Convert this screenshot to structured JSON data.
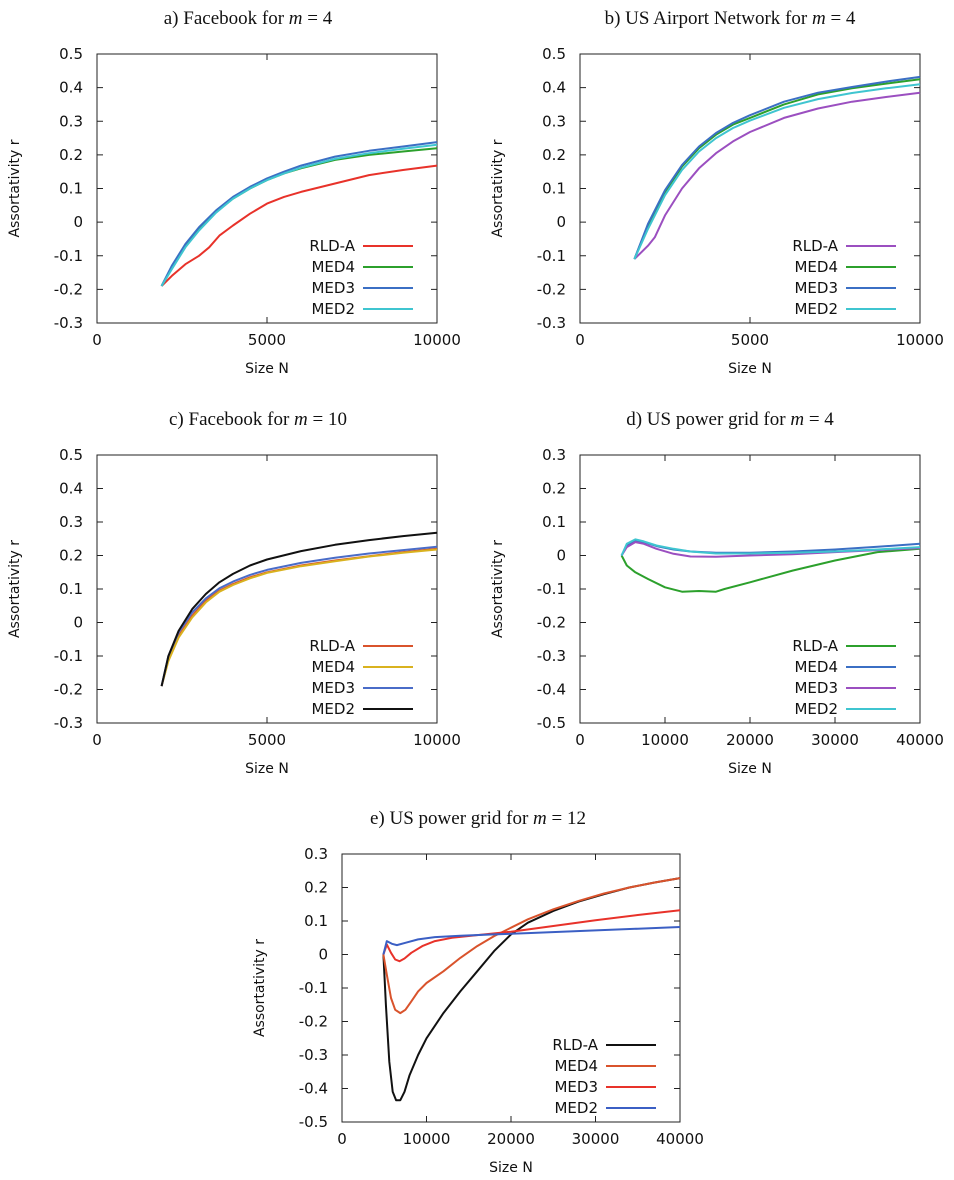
{
  "chart_data": [
    {
      "id": "a",
      "type": "line",
      "title": "a) Facebook for m = 4",
      "title_parts": {
        "prefix": "a) Facebook for ",
        "var": "m",
        "suffix": " = 4"
      },
      "xlabel": "Size N",
      "ylabel": "Assortativity r",
      "xlim": [
        0,
        10000
      ],
      "ylim": [
        -0.3,
        0.5
      ],
      "xticks": [
        0,
        5000,
        10000
      ],
      "yticks": [
        -0.3,
        -0.2,
        -0.1,
        0,
        0.1,
        0.2,
        0.3,
        0.4,
        0.5
      ],
      "grid": false,
      "legend_position": "bottom-right",
      "series": [
        {
          "name": "RLD-A",
          "color": "#e8322a",
          "x": [
            1900,
            2200,
            2600,
            3000,
            3300,
            3600,
            4000,
            4500,
            5000,
            5500,
            6000,
            7000,
            8000,
            9000,
            10000
          ],
          "y": [
            -0.19,
            -0.16,
            -0.125,
            -0.1,
            -0.075,
            -0.04,
            -0.01,
            0.025,
            0.055,
            0.075,
            0.09,
            0.115,
            0.14,
            0.155,
            0.168
          ]
        },
        {
          "name": "MED4",
          "color": "#2ca02c",
          "x": [
            1900,
            2200,
            2600,
            3000,
            3500,
            4000,
            4500,
            5000,
            5500,
            6000,
            7000,
            8000,
            9000,
            10000
          ],
          "y": [
            -0.19,
            -0.135,
            -0.07,
            -0.02,
            0.03,
            0.07,
            0.1,
            0.125,
            0.145,
            0.16,
            0.185,
            0.2,
            0.21,
            0.22
          ]
        },
        {
          "name": "MED3",
          "color": "#3b6fc4",
          "x": [
            1900,
            2200,
            2600,
            3000,
            3500,
            4000,
            4500,
            5000,
            5500,
            6000,
            7000,
            8000,
            9000,
            10000
          ],
          "y": [
            -0.19,
            -0.13,
            -0.065,
            -0.015,
            0.035,
            0.075,
            0.105,
            0.13,
            0.15,
            0.168,
            0.195,
            0.212,
            0.225,
            0.238
          ]
        },
        {
          "name": "MED2",
          "color": "#3fc5d0",
          "x": [
            1900,
            2200,
            2600,
            3000,
            3500,
            4000,
            4500,
            5000,
            5500,
            6000,
            7000,
            8000,
            9000,
            10000
          ],
          "y": [
            -0.19,
            -0.14,
            -0.075,
            -0.025,
            0.028,
            0.07,
            0.1,
            0.125,
            0.145,
            0.162,
            0.188,
            0.205,
            0.218,
            0.23
          ]
        }
      ]
    },
    {
      "id": "b",
      "type": "line",
      "title": "b) US Airport Network for m = 4",
      "title_parts": {
        "prefix": "b) US Airport Network for ",
        "var": "m",
        "suffix": " = 4"
      },
      "xlabel": "Size N",
      "ylabel": "Assortativity r",
      "xlim": [
        0,
        10000
      ],
      "ylim": [
        -0.3,
        0.5
      ],
      "xticks": [
        0,
        5000,
        10000
      ],
      "yticks": [
        -0.3,
        -0.2,
        -0.1,
        0,
        0.1,
        0.2,
        0.3,
        0.4,
        0.5
      ],
      "grid": false,
      "legend_position": "bottom-right",
      "series": [
        {
          "name": "RLD-A",
          "color": "#9b4fc0",
          "x": [
            1600,
            2000,
            2200,
            2500,
            3000,
            3500,
            4000,
            4500,
            5000,
            6000,
            7000,
            8000,
            9000,
            10000
          ],
          "y": [
            -0.11,
            -0.07,
            -0.045,
            0.02,
            0.1,
            0.16,
            0.205,
            0.24,
            0.268,
            0.31,
            0.338,
            0.358,
            0.372,
            0.385
          ]
        },
        {
          "name": "MED4",
          "color": "#2ca02c",
          "x": [
            1600,
            2000,
            2500,
            3000,
            3500,
            4000,
            4500,
            5000,
            6000,
            7000,
            8000,
            9000,
            10000
          ],
          "y": [
            -0.11,
            -0.01,
            0.09,
            0.165,
            0.22,
            0.26,
            0.29,
            0.31,
            0.35,
            0.38,
            0.398,
            0.412,
            0.425
          ]
        },
        {
          "name": "MED3",
          "color": "#3b6fc4",
          "x": [
            1600,
            2000,
            2500,
            3000,
            3500,
            4000,
            4500,
            5000,
            6000,
            7000,
            8000,
            9000,
            10000
          ],
          "y": [
            -0.11,
            -0.005,
            0.095,
            0.17,
            0.225,
            0.265,
            0.295,
            0.318,
            0.358,
            0.385,
            0.402,
            0.418,
            0.432
          ]
        },
        {
          "name": "MED2",
          "color": "#3fc5d0",
          "x": [
            1600,
            2000,
            2500,
            3000,
            3500,
            4000,
            4500,
            5000,
            6000,
            7000,
            8000,
            9000,
            10000
          ],
          "y": [
            -0.11,
            -0.02,
            0.08,
            0.155,
            0.21,
            0.25,
            0.28,
            0.302,
            0.34,
            0.366,
            0.384,
            0.398,
            0.41
          ]
        }
      ]
    },
    {
      "id": "c",
      "type": "line",
      "title": "c) Facebook for m = 10",
      "title_parts": {
        "prefix": "c) Facebook for ",
        "var": "m",
        "suffix": " = 10"
      },
      "xlabel": "Size N",
      "ylabel": "Assortativity r",
      "xlim": [
        0,
        10000
      ],
      "ylim": [
        -0.3,
        0.5
      ],
      "xticks": [
        0,
        5000,
        10000
      ],
      "yticks": [
        -0.3,
        -0.2,
        -0.1,
        0,
        0.1,
        0.2,
        0.3,
        0.4,
        0.5
      ],
      "grid": false,
      "legend_position": "bottom-right",
      "series": [
        {
          "name": "RLD-A",
          "color": "#d9532c",
          "x": [
            1900,
            2100,
            2400,
            2800,
            3200,
            3600,
            4000,
            4500,
            5000,
            6000,
            7000,
            8000,
            9000,
            10000
          ],
          "y": [
            -0.19,
            -0.11,
            -0.04,
            0.02,
            0.065,
            0.095,
            0.115,
            0.135,
            0.15,
            0.17,
            0.185,
            0.198,
            0.21,
            0.22
          ]
        },
        {
          "name": "MED4",
          "color": "#d9b21f",
          "x": [
            1900,
            2100,
            2400,
            2800,
            3200,
            3600,
            4000,
            4500,
            5000,
            6000,
            7000,
            8000,
            9000,
            10000
          ],
          "y": [
            -0.19,
            -0.115,
            -0.045,
            0.015,
            0.06,
            0.092,
            0.112,
            0.132,
            0.148,
            0.168,
            0.183,
            0.197,
            0.208,
            0.218
          ]
        },
        {
          "name": "MED3",
          "color": "#4a6cc8",
          "x": [
            1900,
            2100,
            2400,
            2800,
            3200,
            3600,
            4000,
            4500,
            5000,
            6000,
            7000,
            8000,
            9000,
            10000
          ],
          "y": [
            -0.19,
            -0.1,
            -0.03,
            0.03,
            0.072,
            0.102,
            0.122,
            0.142,
            0.157,
            0.178,
            0.193,
            0.206,
            0.216,
            0.226
          ]
        },
        {
          "name": "MED2",
          "color": "#111111",
          "x": [
            1900,
            2100,
            2400,
            2800,
            3200,
            3600,
            4000,
            4500,
            5000,
            6000,
            7000,
            8000,
            9000,
            10000
          ],
          "y": [
            -0.19,
            -0.1,
            -0.025,
            0.04,
            0.085,
            0.12,
            0.145,
            0.17,
            0.188,
            0.213,
            0.232,
            0.246,
            0.258,
            0.268
          ]
        }
      ]
    },
    {
      "id": "d",
      "type": "line",
      "title": "d) US power grid for m = 4",
      "title_parts": {
        "prefix": "d) US power grid for ",
        "var": "m",
        "suffix": " = 4"
      },
      "xlabel": "Size N",
      "ylabel": "Assortativity r",
      "xlim": [
        0,
        40000
      ],
      "ylim": [
        -0.5,
        0.3
      ],
      "xticks": [
        0,
        10000,
        20000,
        30000,
        40000
      ],
      "yticks": [
        -0.5,
        -0.4,
        -0.3,
        -0.2,
        -0.1,
        0,
        0.1,
        0.2,
        0.3
      ],
      "grid": false,
      "legend_position": "bottom-right",
      "series": [
        {
          "name": "RLD-A",
          "color": "#2ca02c",
          "x": [
            4900,
            5500,
            6500,
            8000,
            10000,
            12000,
            14000,
            16000,
            17000,
            20000,
            25000,
            30000,
            35000,
            40000
          ],
          "y": [
            0.0,
            -0.03,
            -0.05,
            -0.07,
            -0.095,
            -0.108,
            -0.106,
            -0.108,
            -0.1,
            -0.08,
            -0.045,
            -0.015,
            0.01,
            0.02
          ]
        },
        {
          "name": "MED4",
          "color": "#3b6fc4",
          "x": [
            4900,
            5500,
            6500,
            7500,
            9000,
            11000,
            13000,
            16000,
            20000,
            25000,
            30000,
            35000,
            40000
          ],
          "y": [
            0.0,
            0.03,
            0.045,
            0.04,
            0.028,
            0.018,
            0.012,
            0.008,
            0.008,
            0.012,
            0.018,
            0.026,
            0.035
          ]
        },
        {
          "name": "MED3",
          "color": "#9b4fc0",
          "x": [
            4900,
            5500,
            6500,
            7500,
            9000,
            11000,
            13000,
            16000,
            20000,
            25000,
            30000,
            35000,
            40000
          ],
          "y": [
            0.0,
            0.025,
            0.04,
            0.035,
            0.02,
            0.005,
            -0.003,
            -0.004,
            0.0,
            0.004,
            0.01,
            0.016,
            0.022
          ]
        },
        {
          "name": "MED2",
          "color": "#3fc5d0",
          "x": [
            4900,
            5500,
            6500,
            7500,
            9000,
            11000,
            13000,
            16000,
            20000,
            25000,
            30000,
            35000,
            40000
          ],
          "y": [
            0.0,
            0.035,
            0.048,
            0.042,
            0.03,
            0.02,
            0.012,
            0.006,
            0.006,
            0.008,
            0.012,
            0.018,
            0.025
          ]
        }
      ]
    },
    {
      "id": "e",
      "type": "line",
      "title": "e) US power grid for m = 12",
      "title_parts": {
        "prefix": "e) US power grid for ",
        "var": "m",
        "suffix": " = 12"
      },
      "xlabel": "Size N",
      "ylabel": "Assortativity r",
      "xlim": [
        0,
        40000
      ],
      "ylim": [
        -0.5,
        0.3
      ],
      "xticks": [
        0,
        10000,
        20000,
        30000,
        40000
      ],
      "yticks": [
        -0.5,
        -0.4,
        -0.3,
        -0.2,
        -0.1,
        0,
        0.1,
        0.2,
        0.3
      ],
      "grid": false,
      "legend_position": "bottom-right",
      "series": [
        {
          "name": "RLD-A",
          "color": "#111111",
          "x": [
            4900,
            5200,
            5600,
            6000,
            6400,
            6900,
            7400,
            8000,
            9000,
            10000,
            12000,
            14000,
            16000,
            18000,
            20000,
            22000,
            25000,
            28000,
            31000,
            34000,
            37000,
            40000
          ],
          "y": [
            0.0,
            -0.15,
            -0.32,
            -0.41,
            -0.435,
            -0.435,
            -0.41,
            -0.36,
            -0.3,
            -0.25,
            -0.175,
            -0.11,
            -0.05,
            0.01,
            0.06,
            0.095,
            0.13,
            0.158,
            0.18,
            0.2,
            0.215,
            0.228
          ]
        },
        {
          "name": "MED4",
          "color": "#d9532c",
          "x": [
            4900,
            5300,
            5800,
            6300,
            6900,
            7500,
            8200,
            9000,
            10000,
            12000,
            14000,
            16000,
            18000,
            20000,
            22000,
            25000,
            28000,
            31000,
            34000,
            37000,
            40000
          ],
          "y": [
            0.0,
            -0.06,
            -0.13,
            -0.165,
            -0.175,
            -0.165,
            -0.14,
            -0.11,
            -0.085,
            -0.05,
            -0.01,
            0.025,
            0.055,
            0.08,
            0.105,
            0.135,
            0.16,
            0.182,
            0.2,
            0.215,
            0.228
          ]
        },
        {
          "name": "MED3",
          "color": "#e8322a",
          "x": [
            4900,
            5300,
            5800,
            6300,
            6800,
            7400,
            8200,
            9500,
            11000,
            13000,
            16000,
            20000,
            25000,
            30000,
            35000,
            40000
          ],
          "y": [
            0.0,
            0.03,
            0.005,
            -0.015,
            -0.02,
            -0.012,
            0.005,
            0.025,
            0.04,
            0.05,
            0.058,
            0.068,
            0.085,
            0.102,
            0.118,
            0.132
          ]
        },
        {
          "name": "MED2",
          "color": "#3b5fc4",
          "x": [
            4900,
            5300,
            5900,
            6500,
            7500,
            9000,
            11000,
            14000,
            18000,
            22000,
            26000,
            30000,
            35000,
            40000
          ],
          "y": [
            0.0,
            0.04,
            0.032,
            0.028,
            0.035,
            0.045,
            0.052,
            0.056,
            0.06,
            0.064,
            0.068,
            0.072,
            0.077,
            0.082
          ]
        }
      ]
    }
  ]
}
